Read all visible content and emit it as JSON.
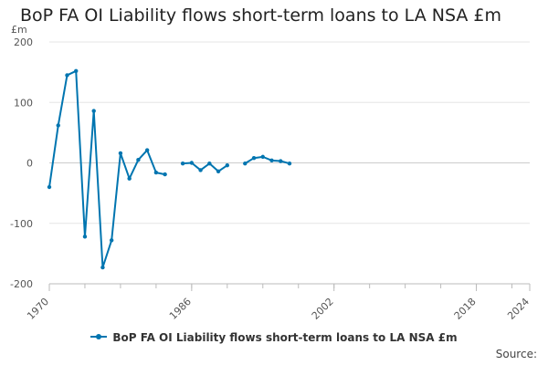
{
  "chart_data": {
    "type": "line",
    "title": "BoP FA OI Liability flows short-term loans to LA NSA £m",
    "ylabel": "£m",
    "xlabel": "",
    "xlim": [
      1970,
      2024
    ],
    "ylim": [
      -200,
      200
    ],
    "x_ticks": [
      "1970",
      "1986",
      "2002",
      "2018",
      "2024"
    ],
    "y_ticks": [
      "200",
      "100",
      "0",
      "-100",
      "-200"
    ],
    "grid": "horizontal",
    "legend_position": "bottom",
    "colors": {
      "series": "#0075b0",
      "grid": "#e6e6e6",
      "axis": "#bbbbbb"
    },
    "series": [
      {
        "name": "BoP FA OI Liability flows short-term loans to LA NSA £m",
        "x": [
          1970,
          1971,
          1972,
          1973,
          1974,
          1975,
          1976,
          1977,
          1978,
          1979,
          1980,
          1981,
          1982,
          1983,
          1984,
          1985,
          1986,
          1987,
          1988,
          1989,
          1990,
          1991,
          1992,
          1993,
          1994,
          1995,
          1996,
          1997
        ],
        "values": [
          -40,
          62,
          145,
          152,
          -122,
          86,
          -173,
          -128,
          16,
          -26,
          5,
          21,
          -16,
          -19,
          null,
          -1,
          0,
          -12,
          -1,
          -14,
          -4,
          null,
          -1,
          8,
          10,
          4,
          3,
          -1
        ]
      }
    ],
    "source_label": "Source:"
  }
}
